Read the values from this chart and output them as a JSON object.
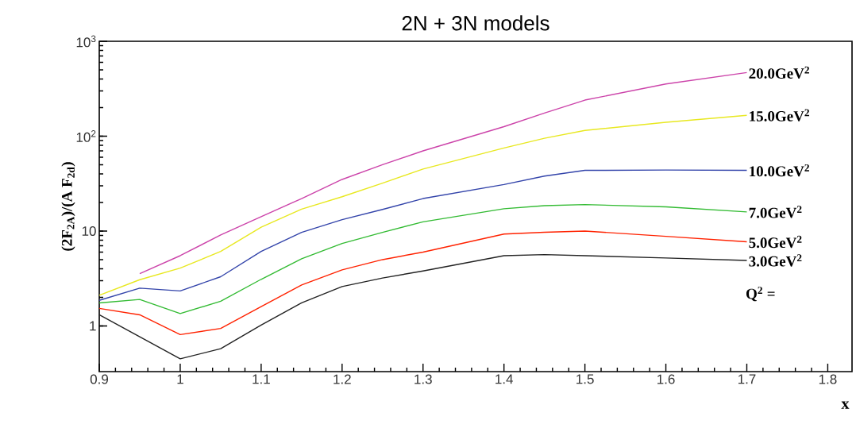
{
  "chart_data": {
    "type": "line",
    "title": "2N + 3N models",
    "xlabel": "x",
    "ylabel": "(2F$_{2A}$)/(A F$_{2d}$)",
    "x": [
      0.9,
      0.95,
      1.0,
      1.05,
      1.1,
      1.15,
      1.2,
      1.25,
      1.3,
      1.4,
      1.45,
      1.5,
      1.6,
      1.7
    ],
    "series": [
      {
        "name": "20.0GeV$^{2}$",
        "color": "#cc44aa",
        "values": [
          null,
          3.56,
          5.5,
          9.1,
          14.2,
          22,
          35,
          50,
          70,
          126,
          175,
          240,
          355,
          468
        ]
      },
      {
        "name": "15.0GeV$^{2}$",
        "color": "#e8e820",
        "values": [
          2.1,
          3.07,
          4.07,
          6.1,
          11,
          17,
          23,
          32,
          45,
          75,
          95,
          115,
          140,
          166
        ]
      },
      {
        "name": "10.0GeV$^{2}$",
        "color": "#3344aa",
        "values": [
          1.86,
          2.5,
          2.34,
          3.3,
          6.1,
          9.7,
          13.2,
          16.9,
          22,
          30.9,
          38,
          43.6,
          44,
          43.6
        ]
      },
      {
        "name": "7.0GeV$^{2}$",
        "color": "#33bb33",
        "values": [
          1.75,
          1.9,
          1.35,
          1.82,
          3.1,
          5.1,
          7.4,
          9.7,
          12.5,
          17.2,
          18.5,
          19,
          18,
          15.9
        ]
      },
      {
        "name": "5.0GeV$^{2}$",
        "color": "#ff2200",
        "values": [
          1.53,
          1.31,
          0.81,
          0.94,
          1.6,
          2.7,
          3.9,
          5.0,
          6.0,
          9.3,
          9.7,
          10.0,
          8.8,
          7.7
        ]
      },
      {
        "name": "3.0GeV$^{2}$",
        "color": "#222222",
        "values": [
          1.31,
          0.77,
          0.45,
          0.575,
          1.02,
          1.75,
          2.6,
          3.2,
          3.8,
          5.5,
          5.65,
          5.5,
          5.2,
          4.9
        ]
      }
    ],
    "annotations": [
      "Q$^{2}$ ="
    ],
    "log": true,
    "xlim": [
      0.9,
      1.83
    ],
    "ylim": [
      0.33,
      1000
    ],
    "xticks": [
      0.9,
      1,
      1.1,
      1.2,
      1.3,
      1.4,
      1.5,
      1.6,
      1.7,
      1.8
    ],
    "yticks": [
      {
        "value": 1,
        "label": "1"
      },
      {
        "value": 10,
        "label": "10"
      },
      {
        "value": 100,
        "label": "10$^{2}$"
      },
      {
        "value": 1000,
        "label": "10$^{3}$"
      }
    ],
    "grid": false,
    "legend": false
  }
}
